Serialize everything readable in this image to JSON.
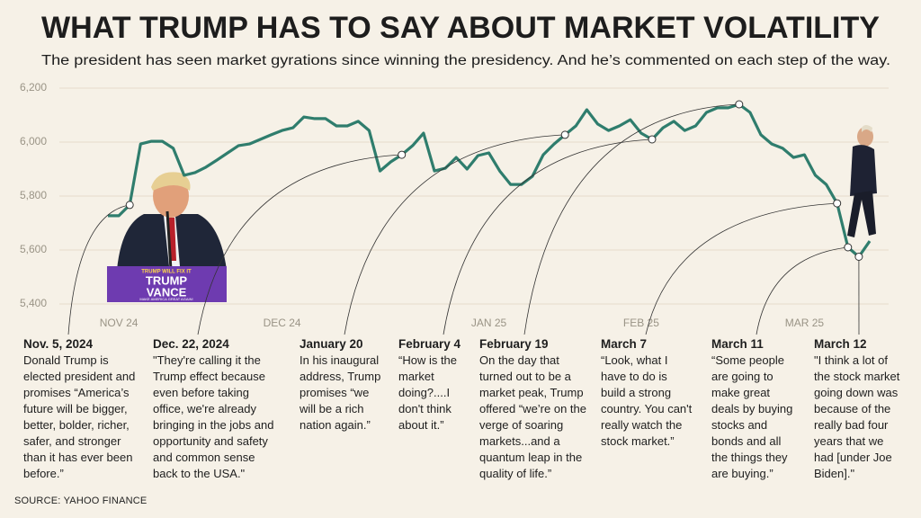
{
  "chart_data": {
    "type": "line",
    "title": "WHAT TRUMP HAS TO SAY ABOUT MARKET VOLATILITY",
    "subtitle": "The president has seen market gyrations since winning the presidency. And he’s commented on each step of the way.",
    "source": "SOURCE:  YAHOO FINANCE",
    "color": "#2f7d6d",
    "grid": true,
    "ylim": [
      5400,
      6200
    ],
    "yticks": [
      {
        "value": 5400,
        "label": "5,400"
      },
      {
        "value": 5600,
        "label": "5,600"
      },
      {
        "value": 5800,
        "label": "5,800"
      },
      {
        "value": 6000,
        "label": "6,000"
      },
      {
        "value": 6200,
        "label": "6,200"
      }
    ],
    "categories": [
      null,
      "NOV 24",
      null,
      null,
      null,
      null,
      null,
      null,
      null,
      null,
      null,
      null,
      null,
      null,
      null,
      null,
      "DEC 24",
      null,
      null,
      null,
      null,
      null,
      null,
      null,
      null,
      null,
      null,
      null,
      null,
      null,
      null,
      null,
      null,
      null,
      null,
      "JAN 25",
      null,
      null,
      null,
      null,
      null,
      null,
      null,
      null,
      null,
      null,
      null,
      null,
      null,
      "FEB 25",
      null,
      null,
      null,
      null,
      null,
      null,
      null,
      null,
      null,
      null,
      null,
      null,
      null,
      null,
      "MAR 25",
      null,
      null,
      null,
      null,
      null,
      null
    ],
    "values": [
      5727,
      5727,
      5767,
      5993,
      6003,
      6003,
      5977,
      5877,
      5887,
      5907,
      5933,
      5960,
      5987,
      5993,
      6010,
      6027,
      6043,
      6053,
      6093,
      6087,
      6087,
      6060,
      6060,
      6077,
      6043,
      5893,
      5927,
      5953,
      5987,
      6033,
      5893,
      5903,
      5943,
      5900,
      5950,
      5960,
      5893,
      5843,
      5843,
      5873,
      5953,
      5993,
      6027,
      6060,
      6120,
      6067,
      6043,
      6060,
      6083,
      6033,
      6010,
      6053,
      6077,
      6043,
      6060,
      6110,
      6127,
      6127,
      6140,
      6110,
      6027,
      5993,
      5977,
      5943,
      5953,
      5877,
      5843,
      5773,
      5610,
      5575,
      5633
    ],
    "annotations": [
      {
        "date": "Nov. 5, 2024",
        "text": "Donald Trump is elected president and promises “America’s future will be bigger, better, bolder, richer, safer, and stronger than it has ever been before.”"
      },
      {
        "date": "Dec. 22, 2024",
        "text": "\"They're calling it the Trump effect because even before taking office, we're already bringing in the jobs and opportunity and safety and common sense back to the USA.\""
      },
      {
        "date": "January 20",
        "text": "In his inaugural address, Trump promises “we will be a rich nation again.”"
      },
      {
        "date": "February 4",
        "text": "“How is the market doing?....I don't think about it.”"
      },
      {
        "date": "February 19",
        "text": "On the day that turned out to be a market peak, Trump offered “we’re on the verge of soaring markets...and a quantum leap in the quality of life.”"
      },
      {
        "date": "March 7",
        "text": "“Look, what I have to do is build a strong country. You can't really watch the stock market.”"
      },
      {
        "date": "March 11",
        "text": "“Some people are going to make great deals by buying stocks and bonds and all the things they are buying.”"
      },
      {
        "date": "March 12",
        "text": "\"I think a lot of the stock market going down was because of the really bad four years that we had [under Joe Biden].\""
      }
    ],
    "photo_sign": [
      "TRUMP WILL FIX IT",
      "TRUMP",
      "VANCE",
      "MAKE AMERICA GREAT AGAIN!"
    ]
  }
}
